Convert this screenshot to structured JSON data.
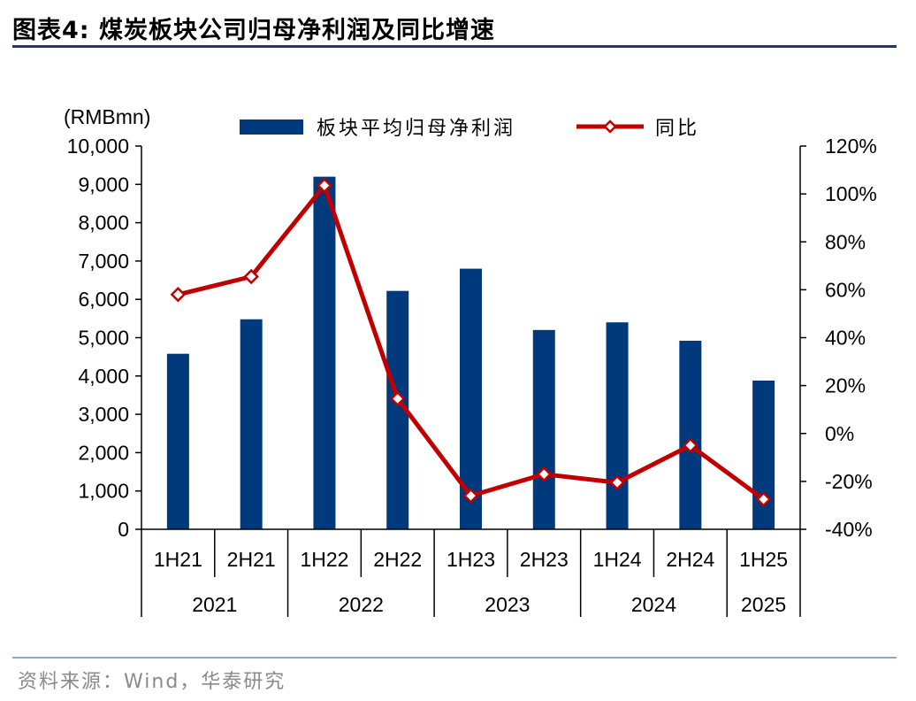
{
  "title": "图表4:   煤炭板块公司归母净利润及同比增速",
  "source": "资料来源：Wind，华泰研究",
  "chart_data": {
    "type": "bar+line",
    "unit_label": "(RMBmn)",
    "categories": [
      "1H21",
      "2H21",
      "1H22",
      "2H22",
      "1H23",
      "2H23",
      "1H24",
      "2H24",
      "1H25"
    ],
    "year_groups": [
      {
        "label": "2021",
        "span": 2
      },
      {
        "label": "2022",
        "span": 2
      },
      {
        "label": "2023",
        "span": 2
      },
      {
        "label": "2024",
        "span": 2
      },
      {
        "label": "2025",
        "span": 1
      }
    ],
    "series": [
      {
        "name": "板块平均归母净利润",
        "type": "bar",
        "axis": "left",
        "color": "#003a7d",
        "values": [
          4580,
          5480,
          9200,
          6220,
          6800,
          5200,
          5400,
          4920,
          3880
        ]
      },
      {
        "name": "同比",
        "type": "line",
        "axis": "right",
        "color": "#c00000",
        "values": [
          58,
          65.5,
          103.5,
          14.5,
          -26,
          -17,
          -20.5,
          -5,
          -27.5
        ]
      }
    ],
    "y_left": {
      "min": 0,
      "max": 10000,
      "ticks": [
        "0",
        "1,000",
        "2,000",
        "3,000",
        "4,000",
        "5,000",
        "6,000",
        "7,000",
        "8,000",
        "9,000",
        "10,000"
      ]
    },
    "y_right": {
      "min": -40,
      "max": 120,
      "ticks": [
        "-40%",
        "-20%",
        "0%",
        "20%",
        "40%",
        "60%",
        "80%",
        "100%",
        "120%"
      ]
    },
    "legend_position": "top"
  }
}
